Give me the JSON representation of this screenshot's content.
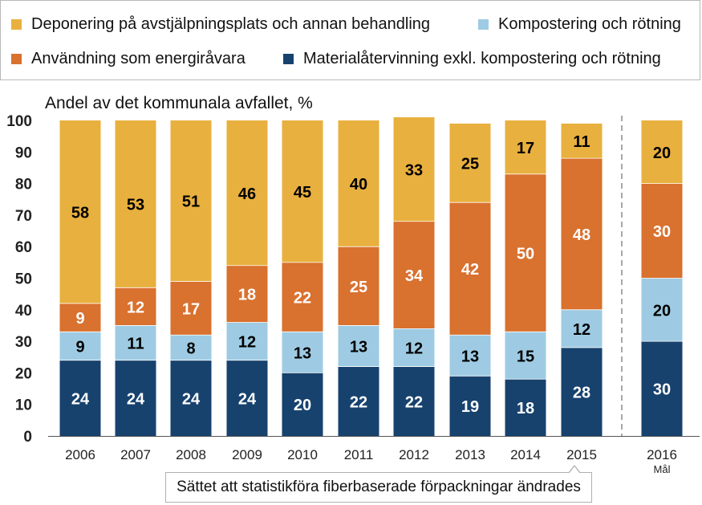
{
  "chart_data": {
    "type": "bar",
    "stacked": true,
    "subtitle": "Andel av det kommunala avfallet, %",
    "ylim": [
      0,
      100
    ],
    "yticks": [
      0,
      10,
      20,
      30,
      40,
      50,
      60,
      70,
      80,
      90,
      100
    ],
    "categories": [
      "2006",
      "2007",
      "2008",
      "2009",
      "2010",
      "2011",
      "2012",
      "2013",
      "2014",
      "2015",
      "2016"
    ],
    "category_sublabels": [
      "",
      "",
      "",
      "",
      "",
      "",
      "",
      "",
      "",
      "",
      "Mål"
    ],
    "separator_after_index": 9,
    "series": [
      {
        "name": "Materialåtervinning exkl. kompostering och rötning",
        "color": "#17426e",
        "label_color": "#ffffff",
        "values": [
          24,
          24,
          24,
          24,
          20,
          22,
          22,
          19,
          18,
          28,
          30
        ]
      },
      {
        "name": "Kompostering och rötning",
        "color": "#9ecbe3",
        "label_color": "#000000",
        "values": [
          9,
          11,
          8,
          12,
          13,
          13,
          12,
          13,
          15,
          12,
          20
        ]
      },
      {
        "name": "Användning som energiråvara",
        "color": "#d9712f",
        "label_color": "#ffffff",
        "values": [
          9,
          12,
          17,
          18,
          22,
          25,
          34,
          42,
          50,
          48,
          30
        ]
      },
      {
        "name": "Deponering på avstjälpningsplats och annan behandling",
        "color": "#e8b03e",
        "label_color": "#000000",
        "values": [
          58,
          53,
          51,
          46,
          45,
          40,
          33,
          25,
          17,
          11,
          20
        ]
      }
    ]
  },
  "legend": {
    "deponering": "Deponering på avstjälpningsplats och annan behandling",
    "kompostering": "Kompostering och rötning",
    "energi": "Användning som energiråvara",
    "material": "Materialåtervinning exkl. kompostering och rötning"
  },
  "colors": {
    "deponering": "#e8b03e",
    "kompostering": "#9ecbe3",
    "energi": "#d9712f",
    "material": "#17426e"
  },
  "note": "Sättet att statistikföra fiberbaserade förpackningar ändrades"
}
